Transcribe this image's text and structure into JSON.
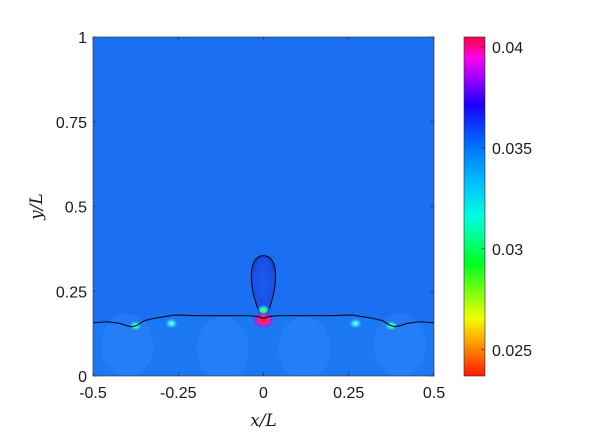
{
  "chart_data": {
    "type": "heatmap",
    "title": "",
    "xlabel": "x/L",
    "ylabel": "y/L",
    "xlim": [
      -0.5,
      0.5
    ],
    "ylim": [
      0,
      1
    ],
    "x_ticks": [
      {
        "value": -0.5,
        "label": "-0.5"
      },
      {
        "value": -0.25,
        "label": "-0.25"
      },
      {
        "value": 0,
        "label": "0"
      },
      {
        "value": 0.25,
        "label": "0.25"
      },
      {
        "value": 0.5,
        "label": "0.5"
      }
    ],
    "y_ticks": [
      {
        "value": 0,
        "label": "0"
      },
      {
        "value": 0.25,
        "label": "0.25"
      },
      {
        "value": 0.5,
        "label": "0.5"
      },
      {
        "value": 0.75,
        "label": "0.75"
      },
      {
        "value": 1,
        "label": "1"
      }
    ],
    "colorbar": {
      "range": [
        0.0237,
        0.0405
      ],
      "colormap": "hsv",
      "ticks": [
        {
          "value": 0.025,
          "label": "0.025"
        },
        {
          "value": 0.03,
          "label": "0.03"
        },
        {
          "value": 0.035,
          "label": "0.035"
        },
        {
          "value": 0.04,
          "label": "0.04"
        }
      ]
    },
    "background_value": 0.0355,
    "interface_curve": [
      [
        -0.5,
        0.157
      ],
      [
        -0.46,
        0.16
      ],
      [
        -0.42,
        0.155
      ],
      [
        -0.4,
        0.148
      ],
      [
        -0.385,
        0.145
      ],
      [
        -0.37,
        0.15
      ],
      [
        -0.35,
        0.163
      ],
      [
        -0.32,
        0.17
      ],
      [
        -0.29,
        0.175
      ],
      [
        -0.26,
        0.18
      ],
      [
        -0.2,
        0.178
      ],
      [
        -0.1,
        0.178
      ],
      [
        -0.04,
        0.178
      ],
      [
        -0.015,
        0.175
      ],
      [
        0,
        0.17
      ],
      [
        0.015,
        0.175
      ],
      [
        0.04,
        0.178
      ],
      [
        0.1,
        0.178
      ],
      [
        0.2,
        0.178
      ],
      [
        0.26,
        0.18
      ],
      [
        0.29,
        0.175
      ],
      [
        0.32,
        0.17
      ],
      [
        0.35,
        0.163
      ],
      [
        0.37,
        0.15
      ],
      [
        0.385,
        0.145
      ],
      [
        0.4,
        0.148
      ],
      [
        0.42,
        0.155
      ],
      [
        0.46,
        0.16
      ],
      [
        0.5,
        0.157
      ]
    ],
    "bubble": {
      "center": [
        0,
        0.3
      ],
      "semi_axes": [
        0.042,
        0.055
      ],
      "neck_y": 0.185
    },
    "hotspots": [
      {
        "x": 0,
        "y": 0.165,
        "value": 0.0245
      },
      {
        "x": 0,
        "y": 0.195,
        "value": 0.031
      },
      {
        "x": -0.27,
        "y": 0.155,
        "value": 0.032
      },
      {
        "x": 0.27,
        "y": 0.155,
        "value": 0.032
      },
      {
        "x": -0.375,
        "y": 0.148,
        "value": 0.031
      },
      {
        "x": 0.375,
        "y": 0.148,
        "value": 0.031
      }
    ]
  }
}
